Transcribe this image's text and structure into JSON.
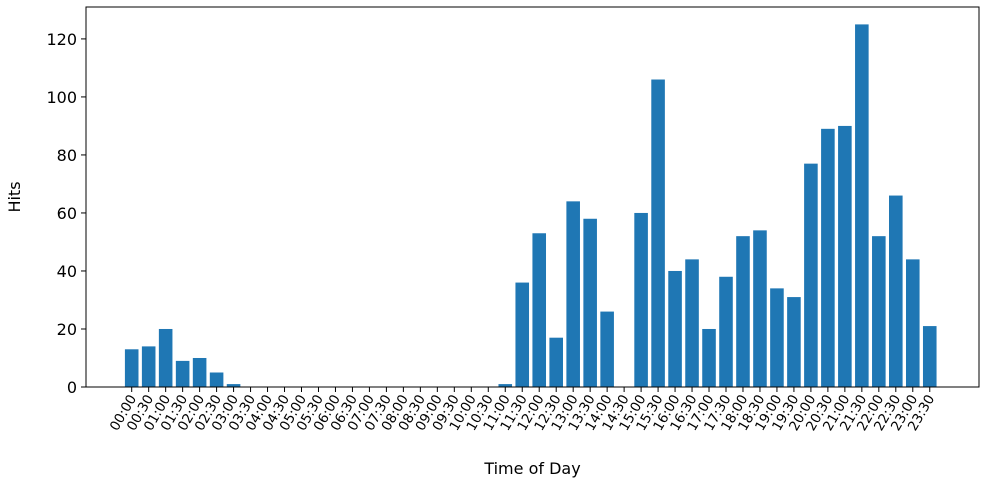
{
  "chart_data": {
    "type": "bar",
    "title": "",
    "xlabel": "Time of Day",
    "ylabel": "Hits",
    "ylim": [
      0,
      131
    ],
    "yticks": [
      0,
      20,
      40,
      60,
      80,
      100,
      120
    ],
    "grid": false,
    "legend": "none",
    "bar_color": "#1f77b4",
    "categories": [
      "00:00",
      "00:30",
      "01:00",
      "01:30",
      "02:00",
      "02:30",
      "03:00",
      "03:30",
      "04:00",
      "04:30",
      "05:00",
      "05:30",
      "06:00",
      "06:30",
      "07:00",
      "07:30",
      "08:00",
      "08:30",
      "09:00",
      "09:30",
      "10:00",
      "10:30",
      "11:00",
      "11:30",
      "12:00",
      "12:30",
      "13:00",
      "13:30",
      "14:00",
      "14:30",
      "15:00",
      "15:30",
      "16:00",
      "16:30",
      "17:00",
      "17:30",
      "18:00",
      "18:30",
      "19:00",
      "19:30",
      "20:00",
      "20:30",
      "21:00",
      "21:30",
      "22:00",
      "22:30",
      "23:00",
      "23:30"
    ],
    "values": [
      13,
      14,
      20,
      9,
      10,
      5,
      1,
      0,
      0,
      0,
      0,
      0,
      0,
      0,
      0,
      0,
      0,
      0,
      0,
      0,
      0,
      0,
      1,
      36,
      53,
      17,
      64,
      58,
      26,
      0,
      60,
      106,
      40,
      44,
      20,
      38,
      52,
      54,
      34,
      31,
      77,
      89,
      90,
      125,
      52,
      66,
      44,
      21
    ]
  }
}
